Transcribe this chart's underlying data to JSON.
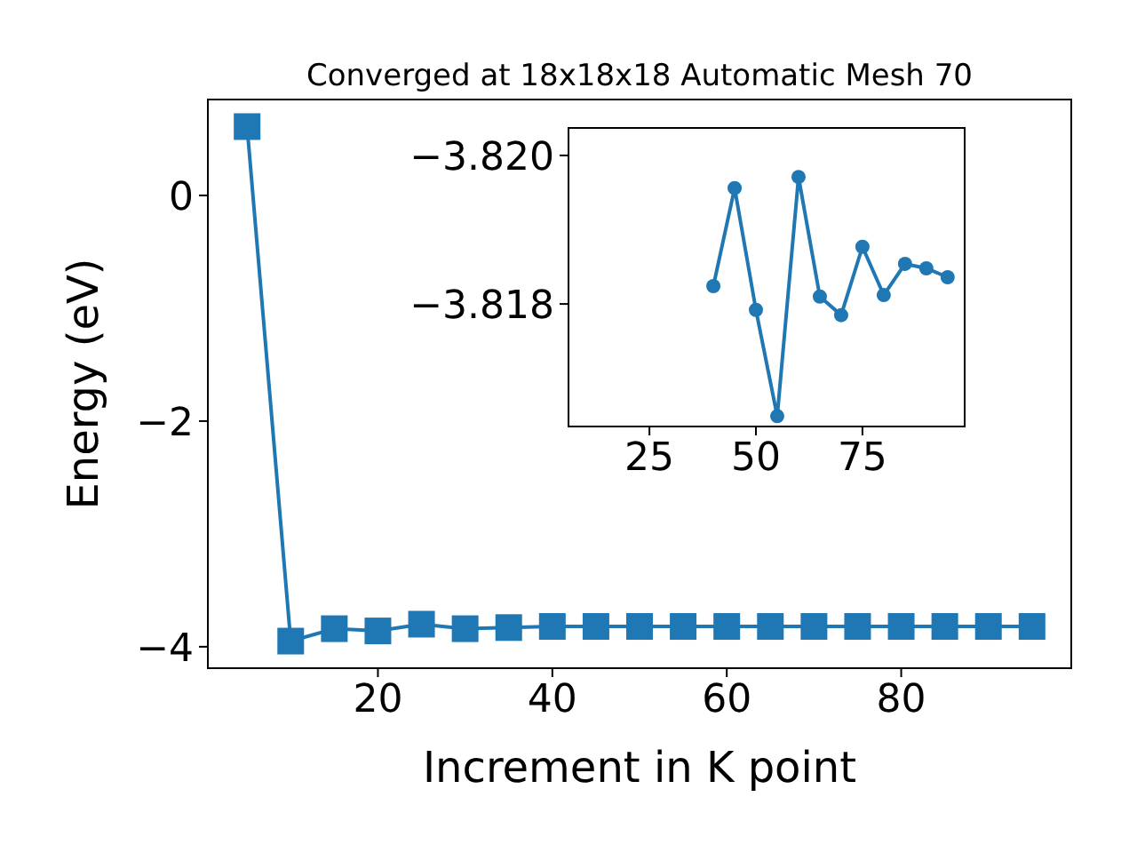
{
  "chart_data": [
    {
      "type": "line",
      "title": "Converged at 18x18x18 Automatic Mesh 70",
      "xlabel": "Increment in K point",
      "ylabel": "Energy (eV)",
      "x": [
        5,
        10,
        15,
        20,
        25,
        30,
        35,
        40,
        45,
        50,
        55,
        60,
        65,
        70,
        75,
        80,
        85,
        90,
        95
      ],
      "series": [
        {
          "color": "#1f77b4",
          "values": [
            0.61,
            -3.95,
            -3.84,
            -3.86,
            -3.8,
            -3.84,
            -3.83,
            -3.82,
            -3.82,
            -3.82,
            -3.82,
            -3.82,
            -3.82,
            -3.82,
            -3.82,
            -3.82,
            -3.82,
            -3.82,
            -3.82
          ]
        }
      ],
      "xlim": [
        0.5,
        99.5
      ],
      "ylim": [
        -4.19,
        0.85
      ],
      "xticks": [
        20,
        40,
        60,
        80
      ],
      "yticks": [
        {
          "value": -4,
          "label": "−4"
        },
        {
          "value": -2,
          "label": "−2"
        },
        0
      ],
      "marker": "square",
      "line_style": "solid",
      "grid": false
    },
    {
      "type": "line",
      "x": [
        40,
        45,
        50,
        55,
        60,
        65,
        70,
        75,
        80,
        85,
        90,
        95
      ],
      "series": [
        {
          "color": "#1f77b4",
          "values": [
            -3.81824,
            -3.81956,
            -3.81792,
            -3.81649,
            -3.81971,
            -3.8181,
            -3.81785,
            -3.81877,
            -3.81812,
            -3.81854,
            -3.81848,
            -3.81836
          ]
        }
      ],
      "xlim": [
        6,
        99
      ],
      "ylim": [
        -3.81635,
        -3.82037
      ],
      "xticks": [
        25,
        50,
        75
      ],
      "yticks": [
        {
          "value": -3.818,
          "label": "−3.818"
        },
        {
          "value": -3.82,
          "label": "−3.820"
        }
      ],
      "marker": "circle",
      "line_style": "solid",
      "grid": false
    }
  ]
}
